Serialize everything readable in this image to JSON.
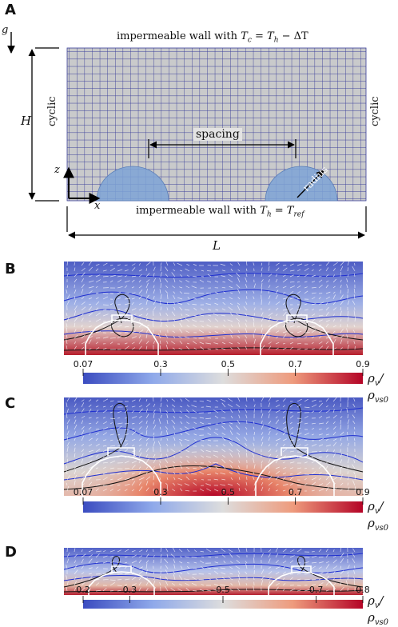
{
  "panels": {
    "A": "A",
    "B": "B",
    "C": "C",
    "D": "D"
  },
  "schematic": {
    "gravity": "g",
    "top_wall": "impermeable wall with",
    "top_wall_math": "T",
    "top_wall_sub": "c",
    "top_wall_eq": "= T",
    "top_wall_sub2": "h",
    "top_wall_tail": "− ΔT",
    "bottom_wall": "impermeable wall with",
    "bottom_wall_math": "T",
    "bottom_wall_sub": "h",
    "bottom_wall_eq": "= T",
    "bottom_wall_sub2": "ref",
    "left_side": "cyclic",
    "right_side": "cyclic",
    "height": "H",
    "length": "L",
    "spacing": "spacing",
    "radius": "radius",
    "axis_x": "x",
    "axis_z": "z"
  },
  "colorbars": [
    {
      "ticks": [
        "0.07",
        "0.3",
        "0.5",
        "0.7",
        "0.9"
      ],
      "values": [
        0.07,
        0.3,
        0.5,
        0.7,
        0.9
      ],
      "min": 0.07,
      "max": 0.9,
      "label_main": "ρ",
      "label_sub": "v",
      "label_den": "ρ",
      "label_den_sub": "vs0"
    },
    {
      "ticks": [
        "0.07",
        "0.3",
        "0.5",
        "0.7",
        "0.9"
      ],
      "values": [
        0.07,
        0.3,
        0.5,
        0.7,
        0.9
      ],
      "min": 0.07,
      "max": 0.9,
      "label_main": "ρ",
      "label_sub": "v",
      "label_den": "ρ",
      "label_den_sub": "vs0"
    },
    {
      "ticks": [
        "0.2",
        "0.3",
        "0.5",
        "0.7",
        "0.8"
      ],
      "values": [
        0.2,
        0.3,
        0.5,
        0.7,
        0.8
      ],
      "min": 0.2,
      "max": 0.8,
      "label_main": "ρ",
      "label_sub": "v",
      "label_den": "ρ",
      "label_den_sub": "vs0"
    }
  ],
  "colors": {
    "grid_bg": "#c9cacb",
    "grid_line": "#3b3f9a",
    "droplet": "#7ea3d6",
    "cmap_low": "#3b4cc0",
    "cmap_mid": "#dddddd",
    "cmap_high": "#b40426"
  }
}
